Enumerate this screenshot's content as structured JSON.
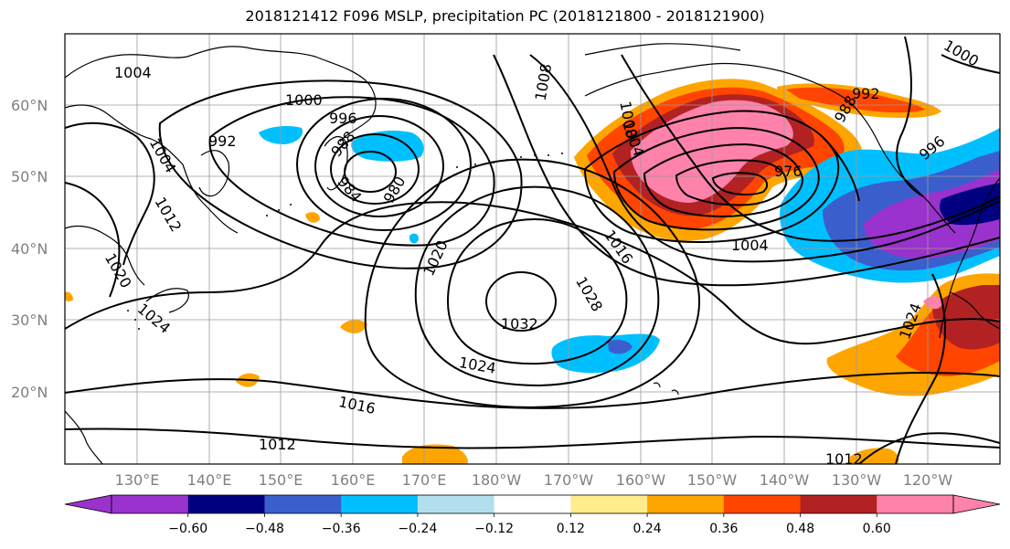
{
  "title": "2018121412 F096 MSLP, precipitation PC (2018121800 - 2018121900)",
  "lat_labels": [
    "60°N",
    "50°N",
    "40°N",
    "30°N",
    "20°N"
  ],
  "lon_labels": [
    "130°E",
    "140°E",
    "150°E",
    "160°E",
    "170°E",
    "180°W",
    "170°W",
    "160°W",
    "150°W",
    "140°W",
    "130°W",
    "120°W"
  ],
  "contour_labels": [
    "1004",
    "1008",
    "1000",
    "996",
    "992",
    "988",
    "984",
    "980",
    "1004",
    "1012",
    "1020",
    "1024",
    "1020",
    "1008",
    "1004",
    "1016",
    "1028",
    "1032",
    "1024",
    "1016",
    "1012",
    "976",
    "1004",
    "996",
    "992",
    "988",
    "1024",
    "1012",
    "1000"
  ],
  "colorbar": {
    "colors": [
      "#9a32cd",
      "#000080",
      "#3a5fcd",
      "#00bfff",
      "#b2dfee",
      "#ffffff",
      "#ffec8b",
      "#ffa500",
      "#ff4500",
      "#b22222",
      "#ff82ab"
    ],
    "ticks": [
      "−0.60",
      "−0.48",
      "−0.36",
      "−0.24",
      "−0.12",
      "0.12",
      "0.24",
      "0.36",
      "0.48",
      "0.60"
    ]
  }
}
